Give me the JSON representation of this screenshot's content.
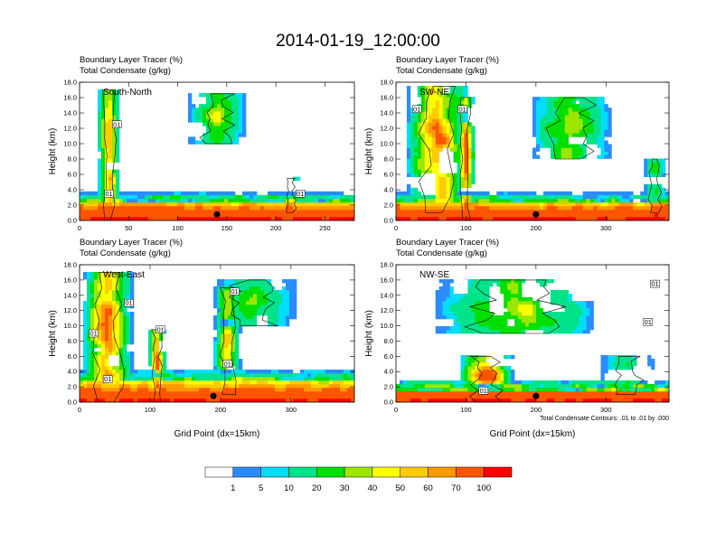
{
  "chart_data": {
    "type": "heatmap",
    "title": "2014-01-19_12:00:00",
    "panel_title_line1": "Boundary Layer Tracer   (%)",
    "panel_title_line2": "Total Condensate   (g/kg)",
    "ylabel": "Height (km)",
    "xlabel": "Grid Point (dx=15km)",
    "contour_note": "Total Condensate Contours: .01 to .01 by .000",
    "contour_label": "01",
    "colorbar": {
      "levels": [
        "1",
        "5",
        "10",
        "20",
        "30",
        "40",
        "50",
        "60",
        "70",
        "100"
      ],
      "colors": [
        "#ffffff",
        "#2b8cff",
        "#00ddff",
        "#00e38a",
        "#00e000",
        "#9ce600",
        "#ffff00",
        "#ffcc00",
        "#ff9900",
        "#ff5500",
        "#ff0000"
      ]
    },
    "panels": [
      {
        "section": "South-North",
        "ylim": [
          0,
          18
        ],
        "yticks": [
          "0.0",
          "2.0",
          "4.0",
          "6.0",
          "8.0",
          "10.0",
          "12.0",
          "14.0",
          "16.0",
          "18.0"
        ],
        "xlim": [
          0,
          280
        ],
        "xticks": [
          "0",
          "50",
          "100",
          "150",
          "200",
          "250"
        ],
        "xtick_values": [
          0,
          50,
          100,
          150,
          200,
          250
        ],
        "marker": {
          "x": 140,
          "y": 0.8
        },
        "contour_labels": [
          {
            "x": 30,
            "y": 3.5
          },
          {
            "x": 38,
            "y": 12.5
          },
          {
            "x": 225,
            "y": 3.5
          }
        ],
        "plumes": [
          {
            "x": 30,
            "base": 0,
            "top": 17,
            "width": 18,
            "value": 50
          },
          {
            "x": 140,
            "base": 10,
            "top": 16.5,
            "width": 45,
            "value": 30
          },
          {
            "x": 215,
            "base": 1,
            "top": 5.5,
            "width": 16,
            "value": 40
          }
        ],
        "bl_top": 2.2
      },
      {
        "section": "SW-NE",
        "ylim": [
          0,
          18
        ],
        "yticks": [
          "0.0",
          "2.0",
          "4.0",
          "6.0",
          "8.0",
          "10.0",
          "12.0",
          "14.0",
          "16.0",
          "18.0"
        ],
        "xlim": [
          0,
          390
        ],
        "xticks": [
          "0",
          "100",
          "200",
          "300"
        ],
        "xtick_values": [
          0,
          100,
          200,
          300
        ],
        "marker": {
          "x": 200,
          "y": 0.8
        },
        "contour_labels": [
          {
            "x": 30,
            "y": 14.5
          },
          {
            "x": 95,
            "y": 14.5
          }
        ],
        "plumes": [
          {
            "x": 60,
            "base": 1,
            "top": 17.5,
            "width": 70,
            "value": 50
          },
          {
            "x": 100,
            "base": 0,
            "top": 16,
            "width": 20,
            "value": 60
          },
          {
            "x": 250,
            "base": 8,
            "top": 16,
            "width": 90,
            "value": 30
          },
          {
            "x": 370,
            "base": 1,
            "top": 8,
            "width": 25,
            "value": 20
          }
        ],
        "bl_top": 2.2
      },
      {
        "section": "West-East",
        "ylim": [
          0,
          18
        ],
        "yticks": [
          "0.0",
          "2.0",
          "4.0",
          "6.0",
          "8.0",
          "10.0",
          "12.0",
          "14.0",
          "16.0",
          "18.0"
        ],
        "xlim": [
          0,
          390
        ],
        "xticks": [
          "0",
          "100",
          "200",
          "300"
        ],
        "xtick_values": [
          0,
          100,
          200,
          300
        ],
        "marker": {
          "x": 190,
          "y": 0.8
        },
        "contour_labels": [
          {
            "x": 70,
            "y": 13
          },
          {
            "x": 20,
            "y": 9
          },
          {
            "x": 40,
            "y": 3
          },
          {
            "x": 115,
            "y": 9.5
          },
          {
            "x": 220,
            "y": 14.5
          },
          {
            "x": 210,
            "y": 5
          }
        ],
        "plumes": [
          {
            "x": 40,
            "base": 0,
            "top": 17,
            "width": 55,
            "value": 50
          },
          {
            "x": 110,
            "base": 0,
            "top": 9.5,
            "width": 20,
            "value": 60
          },
          {
            "x": 210,
            "base": 1,
            "top": 15,
            "width": 30,
            "value": 40
          },
          {
            "x": 250,
            "base": 10,
            "top": 16,
            "width": 90,
            "value": 20
          }
        ],
        "bl_top": 2.8
      },
      {
        "section": "NW-SE",
        "ylim": [
          0,
          18
        ],
        "yticks": [
          "0.0",
          "2.0",
          "4.0",
          "6.0",
          "8.0",
          "10.0",
          "12.0",
          "14.0",
          "16.0",
          "18.0"
        ],
        "xlim": [
          0,
          390
        ],
        "xticks": [
          "0",
          "100",
          "200",
          "300"
        ],
        "xtick_values": [
          0,
          100,
          200,
          300
        ],
        "marker": {
          "x": 200,
          "y": 0.8
        },
        "contour_labels": [
          {
            "x": 125,
            "y": 1.5
          },
          {
            "x": 370,
            "y": 15.5
          },
          {
            "x": 360,
            "y": 10.5
          }
        ],
        "plumes": [
          {
            "x": 130,
            "base": 0,
            "top": 6,
            "width": 60,
            "value": 60
          },
          {
            "x": 170,
            "base": 9,
            "top": 16,
            "width": 180,
            "value": 30
          },
          {
            "x": 330,
            "base": 1,
            "top": 6,
            "width": 60,
            "value": 20
          }
        ],
        "bl_top": 1.6
      }
    ]
  }
}
